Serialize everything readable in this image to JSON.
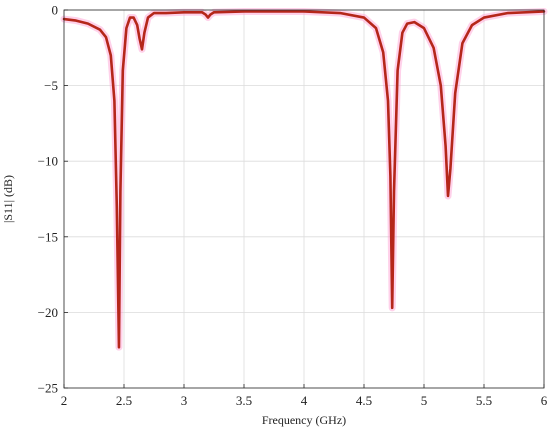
{
  "chart_data": {
    "type": "line",
    "title": "",
    "xlabel": "Frequency (GHz)",
    "ylabel": "|S11| (dB)",
    "xlim": [
      2,
      6
    ],
    "ylim": [
      -25,
      0
    ],
    "grid": true,
    "x_ticks": [
      2,
      2.5,
      3,
      3.5,
      4,
      4.5,
      5,
      5.5,
      6
    ],
    "x_tick_labels": [
      "2",
      "2.5",
      "3",
      "3.5",
      "4",
      "4.5",
      "5",
      "5.5",
      "6"
    ],
    "y_ticks": [
      0,
      -5,
      -10,
      -15,
      -20,
      -25
    ],
    "y_tick_labels": [
      "0",
      "−5",
      "−10",
      "−15",
      "−20",
      "−25"
    ],
    "series": [
      {
        "color": "#b5271a",
        "glow_color": "#ff9ad0",
        "points": [
          [
            2.0,
            -0.6
          ],
          [
            2.1,
            -0.7
          ],
          [
            2.2,
            -0.9
          ],
          [
            2.3,
            -1.3
          ],
          [
            2.35,
            -1.8
          ],
          [
            2.39,
            -3.0
          ],
          [
            2.42,
            -6.0
          ],
          [
            2.44,
            -13.0
          ],
          [
            2.458,
            -22.3
          ],
          [
            2.47,
            -12.0
          ],
          [
            2.49,
            -4.0
          ],
          [
            2.52,
            -1.2
          ],
          [
            2.55,
            -0.5
          ],
          [
            2.58,
            -0.5
          ],
          [
            2.61,
            -1.0
          ],
          [
            2.63,
            -1.9
          ],
          [
            2.65,
            -2.6
          ],
          [
            2.67,
            -1.5
          ],
          [
            2.7,
            -0.5
          ],
          [
            2.75,
            -0.2
          ],
          [
            2.85,
            -0.2
          ],
          [
            3.0,
            -0.15
          ],
          [
            3.15,
            -0.15
          ],
          [
            3.18,
            -0.3
          ],
          [
            3.2,
            -0.5
          ],
          [
            3.22,
            -0.3
          ],
          [
            3.25,
            -0.15
          ],
          [
            3.5,
            -0.1
          ],
          [
            4.0,
            -0.1
          ],
          [
            4.3,
            -0.2
          ],
          [
            4.5,
            -0.5
          ],
          [
            4.6,
            -1.2
          ],
          [
            4.66,
            -2.8
          ],
          [
            4.7,
            -6.0
          ],
          [
            4.72,
            -11.0
          ],
          [
            4.735,
            -19.7
          ],
          [
            4.75,
            -12.0
          ],
          [
            4.78,
            -4.0
          ],
          [
            4.82,
            -1.5
          ],
          [
            4.86,
            -0.9
          ],
          [
            4.92,
            -0.8
          ],
          [
            5.0,
            -1.2
          ],
          [
            5.08,
            -2.5
          ],
          [
            5.14,
            -5.0
          ],
          [
            5.18,
            -9.0
          ],
          [
            5.2,
            -12.3
          ],
          [
            5.22,
            -10.5
          ],
          [
            5.26,
            -5.5
          ],
          [
            5.32,
            -2.2
          ],
          [
            5.4,
            -1.0
          ],
          [
            5.5,
            -0.5
          ],
          [
            5.7,
            -0.2
          ],
          [
            6.0,
            -0.1
          ]
        ]
      }
    ]
  }
}
